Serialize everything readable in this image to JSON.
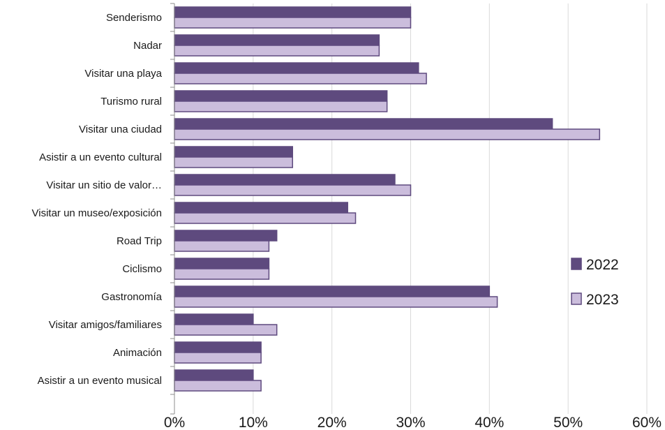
{
  "chart_data": {
    "type": "bar",
    "orientation": "horizontal",
    "title": "",
    "xlabel": "",
    "ylabel": "",
    "xlim": [
      0,
      60
    ],
    "x_ticks": [
      "0%",
      "10%",
      "20%",
      "30%",
      "40%",
      "50%",
      "60%"
    ],
    "grid": "vertical",
    "legend_position": "right",
    "categories": [
      "Senderismo",
      "Nadar",
      "Visitar una playa",
      "Turismo rural",
      "Visitar una ciudad",
      "Asistir a un evento cultural",
      "Visitar un sitio de valor…",
      "Visitar un museo/exposición",
      "Road Trip",
      "Ciclismo",
      "Gastronomía",
      "Visitar amigos/familiares",
      "Animación",
      "Asistir a un evento musical"
    ],
    "series": [
      {
        "name": "2022",
        "color": "#5e4a7e",
        "values": [
          30,
          26,
          31,
          27,
          48,
          15,
          28,
          22,
          13,
          12,
          40,
          10,
          11,
          10
        ]
      },
      {
        "name": "2023",
        "color": "#cbbddc",
        "values": [
          30,
          26,
          32,
          27,
          54,
          15,
          30,
          23,
          12,
          12,
          41,
          13,
          11,
          11
        ]
      }
    ]
  }
}
